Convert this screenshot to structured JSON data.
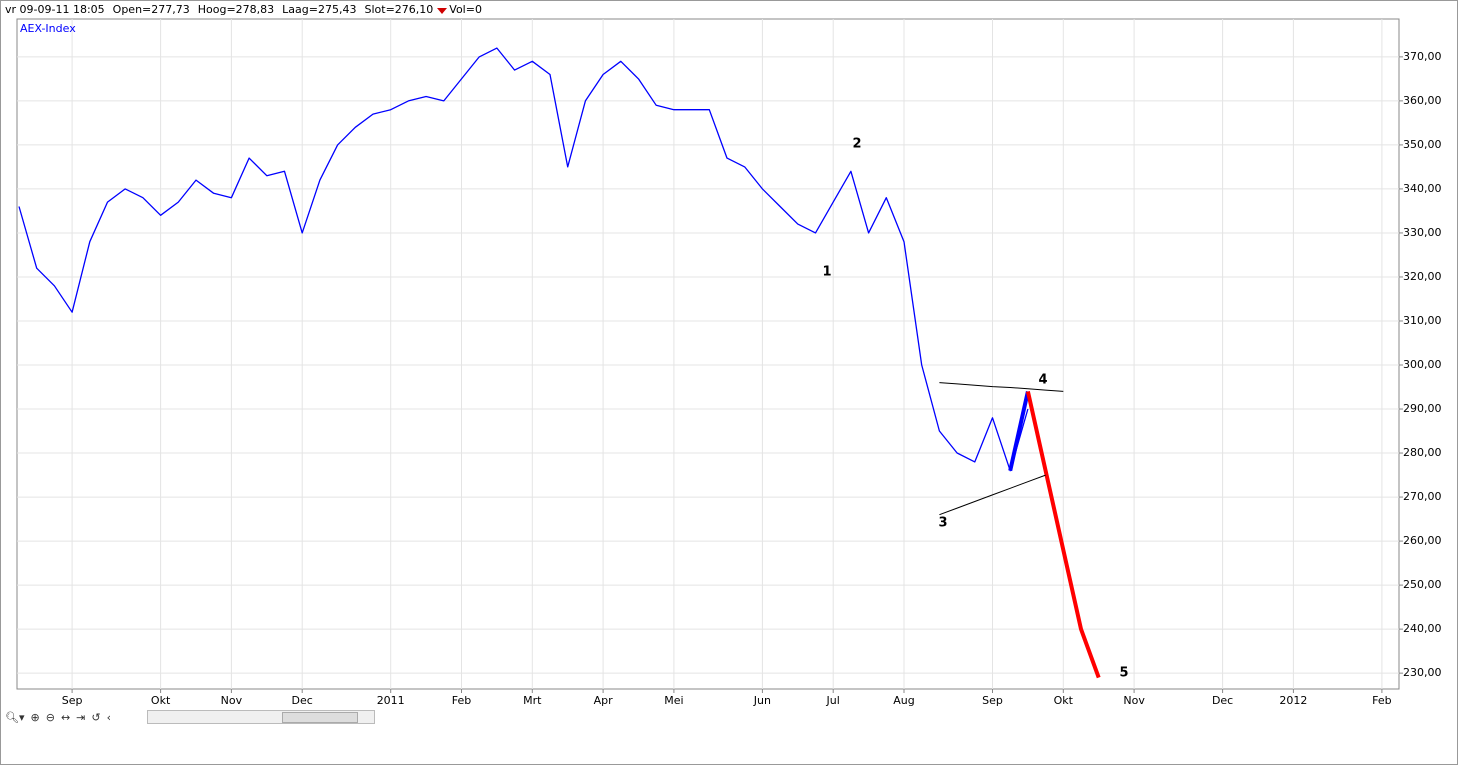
{
  "header": {
    "timestamp": "vr 09-09-11 18:05",
    "open": "Open=277,73",
    "high": "Hoog=278,83",
    "low": "Laag=275,43",
    "close": "Slot=276,10",
    "volume": "Vol=0"
  },
  "chart_data": {
    "type": "line",
    "categories": [
      null,
      null,
      null,
      "Sep",
      null,
      null,
      null,
      null,
      "Okt",
      null,
      null,
      null,
      "Nov",
      null,
      null,
      null,
      "Dec",
      null,
      null,
      null,
      null,
      "2011",
      null,
      null,
      null,
      "Feb",
      null,
      null,
      null,
      "Mrt",
      null,
      null,
      null,
      "Apr",
      null,
      null,
      null,
      "Mei",
      null,
      null,
      null,
      null,
      "Jun",
      null,
      null,
      null,
      "Jul",
      null,
      null,
      null,
      "Aug",
      null,
      null,
      null,
      null,
      "Sep",
      null,
      null,
      null,
      "Okt",
      null,
      null,
      null,
      "Nov",
      null,
      null,
      null,
      null,
      "Dec",
      null,
      null,
      null,
      "2012",
      null,
      null,
      null,
      null,
      "Feb"
    ],
    "series": [
      {
        "name": "AEX-Index",
        "color": "#0000ff",
        "width": 1.3,
        "values": [
          336,
          322,
          318,
          312,
          328,
          337,
          340,
          338,
          334,
          337,
          342,
          339,
          338,
          347,
          343,
          344,
          330,
          342,
          350,
          354,
          357,
          358,
          360,
          361,
          360,
          365,
          370,
          372,
          367,
          369,
          366,
          345,
          360,
          366,
          369,
          365,
          359,
          358,
          358,
          358,
          347,
          345,
          340,
          336,
          332,
          330,
          337,
          344,
          330,
          338,
          328,
          300,
          285,
          280,
          278,
          288,
          276,
          290,
          null,
          null,
          null,
          null,
          null,
          null,
          null,
          null,
          null,
          null,
          null,
          null,
          null,
          null,
          null,
          null,
          null,
          null,
          null,
          null
        ]
      },
      {
        "color": "#0000ff",
        "width": 4,
        "values": [
          null,
          null,
          null,
          null,
          null,
          null,
          null,
          null,
          null,
          null,
          null,
          null,
          null,
          null,
          null,
          null,
          null,
          null,
          null,
          null,
          null,
          null,
          null,
          null,
          null,
          null,
          null,
          null,
          null,
          null,
          null,
          null,
          null,
          null,
          null,
          null,
          null,
          null,
          null,
          null,
          null,
          null,
          null,
          null,
          null,
          null,
          null,
          null,
          null,
          null,
          null,
          null,
          null,
          null,
          null,
          null,
          276,
          294,
          null,
          null,
          null,
          null,
          null,
          null,
          null,
          null,
          null,
          null,
          null,
          null,
          null,
          null,
          null,
          null,
          null,
          null,
          null,
          null
        ]
      },
      {
        "color": "#ff0000",
        "width": 4,
        "values": [
          null,
          null,
          null,
          null,
          null,
          null,
          null,
          null,
          null,
          null,
          null,
          null,
          null,
          null,
          null,
          null,
          null,
          null,
          null,
          null,
          null,
          null,
          null,
          null,
          null,
          null,
          null,
          null,
          null,
          null,
          null,
          null,
          null,
          null,
          null,
          null,
          null,
          null,
          null,
          null,
          null,
          null,
          null,
          null,
          null,
          null,
          null,
          null,
          null,
          null,
          null,
          null,
          null,
          null,
          null,
          null,
          null,
          294,
          276,
          258,
          240,
          229,
          null,
          null,
          null,
          null,
          null,
          null,
          null,
          null,
          null,
          null,
          null,
          null,
          null,
          null,
          null,
          null
        ]
      },
      {
        "color": "#000000",
        "width": 1,
        "values": [
          null,
          null,
          null,
          null,
          null,
          null,
          null,
          null,
          null,
          null,
          null,
          null,
          null,
          null,
          null,
          null,
          null,
          null,
          null,
          null,
          null,
          null,
          null,
          null,
          null,
          null,
          null,
          null,
          null,
          null,
          null,
          null,
          null,
          null,
          null,
          null,
          null,
          null,
          null,
          null,
          null,
          null,
          null,
          null,
          null,
          null,
          null,
          null,
          null,
          null,
          null,
          null,
          296,
          295.7,
          295.4,
          295.1,
          294.9,
          294.6,
          294.3,
          294,
          null,
          null,
          null,
          null,
          null,
          null,
          null,
          null,
          null,
          null,
          null,
          null,
          null,
          null,
          null,
          null,
          null,
          null
        ]
      },
      {
        "color": "#000000",
        "width": 1,
        "values": [
          null,
          null,
          null,
          null,
          null,
          null,
          null,
          null,
          null,
          null,
          null,
          null,
          null,
          null,
          null,
          null,
          null,
          null,
          null,
          null,
          null,
          null,
          null,
          null,
          null,
          null,
          null,
          null,
          null,
          null,
          null,
          null,
          null,
          null,
          null,
          null,
          null,
          null,
          null,
          null,
          null,
          null,
          null,
          null,
          null,
          null,
          null,
          null,
          null,
          null,
          null,
          null,
          266,
          267.5,
          269,
          270.5,
          272,
          273.5,
          275,
          null,
          null,
          null,
          null,
          null,
          null,
          null,
          null,
          null,
          null,
          null,
          null,
          null,
          null,
          null,
          null,
          null,
          null,
          null
        ]
      }
    ],
    "annotations": [
      "1",
      "2",
      "3",
      "4",
      "5"
    ],
    "ylim": [
      226.4,
      378.6
    ],
    "yticks": [
      {
        "value": 230,
        "label": "230,00"
      },
      {
        "value": 240,
        "label": "240,00"
      },
      {
        "value": 250,
        "label": "250,00"
      },
      {
        "value": 260,
        "label": "260,00"
      },
      {
        "value": 270,
        "label": "270,00"
      },
      {
        "value": 280,
        "label": "280,00"
      },
      {
        "value": 290,
        "label": "290,00"
      },
      {
        "value": 300,
        "label": "300,00"
      },
      {
        "value": 310,
        "label": "310,00"
      },
      {
        "value": 320,
        "label": "320,00"
      },
      {
        "value": 330,
        "label": "330,00"
      },
      {
        "value": 340,
        "label": "340,00"
      },
      {
        "value": 350,
        "label": "350,00"
      },
      {
        "value": 360,
        "label": "360,00"
      },
      {
        "value": 370,
        "label": "370,00"
      }
    ],
    "grid": true,
    "grid_color": "#e4e4e4"
  }
}
